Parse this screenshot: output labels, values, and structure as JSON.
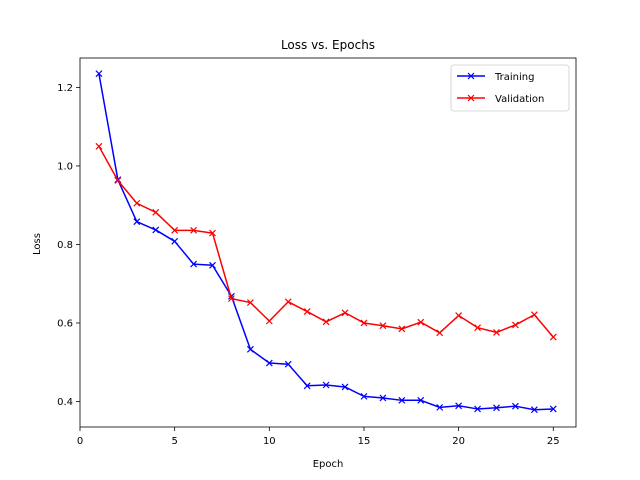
{
  "chart_data": {
    "type": "line",
    "title": "Loss vs. Epochs",
    "xlabel": "Epoch",
    "ylabel": "Loss",
    "xlim": [
      0,
      26.2
    ],
    "ylim": [
      0.335,
      1.275
    ],
    "xticks": [
      0,
      5,
      10,
      15,
      20,
      25
    ],
    "yticks": [
      0.4,
      0.6,
      0.8,
      1.0,
      1.2
    ],
    "ytick_labels": [
      "0.4",
      "0.6",
      "0.8",
      "1.0",
      "1.2"
    ],
    "grid": false,
    "legend_position": "top-right",
    "x": [
      1,
      2,
      3,
      4,
      5,
      6,
      7,
      8,
      9,
      10,
      11,
      12,
      13,
      14,
      15,
      16,
      17,
      18,
      19,
      20,
      21,
      22,
      23,
      24,
      25
    ],
    "series": [
      {
        "name": "Training",
        "color": "#0000ff",
        "marker": "x",
        "values": [
          1.235,
          0.965,
          0.858,
          0.837,
          0.808,
          0.75,
          0.747,
          0.668,
          0.533,
          0.498,
          0.495,
          0.44,
          0.442,
          0.437,
          0.413,
          0.409,
          0.403,
          0.403,
          0.385,
          0.389,
          0.381,
          0.384,
          0.388,
          0.379,
          0.381
        ]
      },
      {
        "name": "Validation",
        "color": "#ff0000",
        "marker": "x",
        "values": [
          1.05,
          0.963,
          0.905,
          0.882,
          0.836,
          0.836,
          0.829,
          0.662,
          0.652,
          0.605,
          0.654,
          0.629,
          0.603,
          0.626,
          0.6,
          0.593,
          0.585,
          0.602,
          0.575,
          0.619,
          0.588,
          0.576,
          0.595,
          0.621,
          0.564
        ]
      }
    ]
  }
}
